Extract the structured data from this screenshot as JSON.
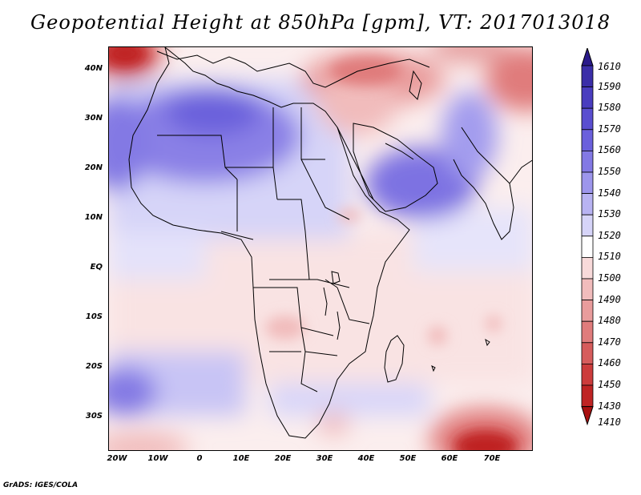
{
  "title": "Geopotential Height at 850hPa [gpm], VT: 2017013018",
  "credit": "GrADS: IGES/COLA",
  "lat_labels": [
    "40N",
    "30N",
    "20N",
    "10N",
    "EQ",
    "10S",
    "20S",
    "30S"
  ],
  "lon_labels": [
    "20W",
    "10W",
    "0",
    "10E",
    "20E",
    "30E",
    "40E",
    "50E",
    "60E",
    "70E"
  ],
  "colorbar": {
    "levels": [
      "1610",
      "1590",
      "1580",
      "1570",
      "1560",
      "1550",
      "1540",
      "1530",
      "1520",
      "1510",
      "1500",
      "1490",
      "1480",
      "1470",
      "1460",
      "1450",
      "1430",
      "1410"
    ],
    "colors": [
      "#2a1a8a",
      "#3b2ea8",
      "#4a3dbf",
      "#5a4ed0",
      "#6b60dc",
      "#8379e4",
      "#9d96ec",
      "#b8b3f2",
      "#d6d4f8",
      "#ffffff",
      "#f8dada",
      "#f1bcbc",
      "#e99c9c",
      "#e07c7c",
      "#d65c5c",
      "#cc3c3c",
      "#bf2424",
      "#a81010"
    ]
  },
  "map": {
    "region": "Africa and surroundings",
    "lon_range": [
      "20W",
      "80E"
    ],
    "lat_range": [
      "37S",
      "45N"
    ],
    "features": {
      "high_pressure": "Sahara, Arabian Peninsula, NE Atlantic",
      "low_pressure": "Mediterranean, Middle East, Southern Ocean south of Madagascar"
    }
  }
}
